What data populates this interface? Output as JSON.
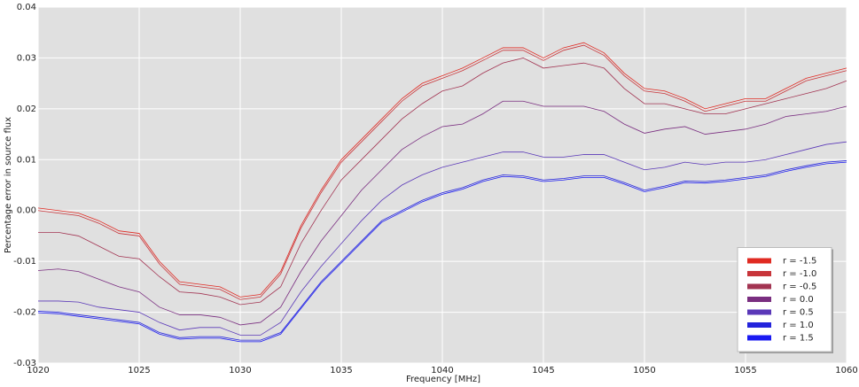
{
  "chart_data": {
    "type": "line",
    "xlabel": "Frequency [MHz]",
    "ylabel": "Percentage error in source flux",
    "x": [
      1020,
      1021,
      1022,
      1023,
      1024,
      1025,
      1026,
      1027,
      1028,
      1029,
      1030,
      1031,
      1032,
      1033,
      1034,
      1035,
      1036,
      1037,
      1038,
      1039,
      1040,
      1041,
      1042,
      1043,
      1044,
      1045,
      1046,
      1047,
      1048,
      1049,
      1050,
      1051,
      1052,
      1053,
      1054,
      1055,
      1056,
      1057,
      1058,
      1059,
      1060
    ],
    "series": [
      {
        "name": "r = -1.5",
        "color": "#e02a22",
        "values": [
          0.0005,
          0.0,
          -0.0005,
          -0.002,
          -0.004,
          -0.0045,
          -0.01,
          -0.014,
          -0.0145,
          -0.015,
          -0.017,
          -0.0165,
          -0.012,
          -0.003,
          0.004,
          0.01,
          0.014,
          0.018,
          0.022,
          0.025,
          0.0265,
          0.028,
          0.03,
          0.032,
          0.032,
          0.03,
          0.032,
          0.033,
          0.031,
          0.027,
          0.024,
          0.0235,
          0.022,
          0.02,
          0.021,
          0.022,
          0.022,
          0.024,
          0.026,
          0.027,
          0.028
        ]
      },
      {
        "name": "r = -1.0",
        "color": "#c8353a",
        "values": [
          0.0,
          -0.0005,
          -0.001,
          -0.0025,
          -0.0045,
          -0.005,
          -0.0105,
          -0.0145,
          -0.015,
          -0.0155,
          -0.0175,
          -0.017,
          -0.0125,
          -0.0035,
          0.0035,
          0.0095,
          0.0135,
          0.0175,
          0.0215,
          0.0245,
          0.026,
          0.0275,
          0.0295,
          0.0315,
          0.0315,
          0.0295,
          0.0315,
          0.0325,
          0.0305,
          0.0265,
          0.0235,
          0.023,
          0.0215,
          0.0195,
          0.0205,
          0.0215,
          0.0215,
          0.0235,
          0.0255,
          0.0265,
          0.0275
        ]
      },
      {
        "name": "r = -0.5",
        "color": "#a23452",
        "values": [
          -0.0043,
          -0.0043,
          -0.005,
          -0.007,
          -0.009,
          -0.0095,
          -0.013,
          -0.016,
          -0.0163,
          -0.017,
          -0.0185,
          -0.018,
          -0.015,
          -0.0065,
          0.0,
          0.006,
          0.01,
          0.014,
          0.018,
          0.021,
          0.0235,
          0.0245,
          0.027,
          0.029,
          0.03,
          0.028,
          0.0285,
          0.029,
          0.028,
          0.024,
          0.021,
          0.021,
          0.02,
          0.019,
          0.019,
          0.02,
          0.021,
          0.022,
          0.023,
          0.024,
          0.0255
        ]
      },
      {
        "name": "r = 0.0",
        "color": "#7a2e80",
        "values": [
          -0.0118,
          -0.0115,
          -0.012,
          -0.0135,
          -0.015,
          -0.016,
          -0.019,
          -0.0205,
          -0.0205,
          -0.021,
          -0.0225,
          -0.022,
          -0.019,
          -0.012,
          -0.006,
          -0.001,
          0.004,
          0.008,
          0.012,
          0.0145,
          0.0165,
          0.017,
          0.019,
          0.0215,
          0.0215,
          0.0205,
          0.0205,
          0.0205,
          0.0195,
          0.017,
          0.0152,
          0.016,
          0.0165,
          0.015,
          0.0155,
          0.016,
          0.017,
          0.0185,
          0.019,
          0.0195,
          0.0205
        ]
      },
      {
        "name": "r = 0.5",
        "color": "#5a38b8",
        "values": [
          -0.0178,
          -0.0178,
          -0.018,
          -0.019,
          -0.0195,
          -0.02,
          -0.022,
          -0.0235,
          -0.023,
          -0.023,
          -0.0245,
          -0.0245,
          -0.022,
          -0.016,
          -0.011,
          -0.0065,
          -0.002,
          0.002,
          0.005,
          0.007,
          0.0085,
          0.0095,
          0.0105,
          0.0115,
          0.0115,
          0.0105,
          0.0105,
          0.011,
          0.011,
          0.0095,
          0.008,
          0.0085,
          0.0095,
          0.009,
          0.0095,
          0.0095,
          0.01,
          0.011,
          0.012,
          0.013,
          0.0135
        ]
      },
      {
        "name": "r = 1.0",
        "color": "#2424dc",
        "values": [
          -0.0198,
          -0.02,
          -0.0205,
          -0.021,
          -0.0215,
          -0.022,
          -0.024,
          -0.025,
          -0.0248,
          -0.0248,
          -0.0255,
          -0.0255,
          -0.024,
          -0.019,
          -0.014,
          -0.01,
          -0.006,
          -0.002,
          0.0,
          0.002,
          0.0035,
          0.0045,
          0.006,
          0.007,
          0.0068,
          0.006,
          0.0063,
          0.0068,
          0.0068,
          0.0055,
          0.004,
          0.0048,
          0.0058,
          0.0057,
          0.006,
          0.0065,
          0.007,
          0.008,
          0.0088,
          0.0095,
          0.0098
        ]
      },
      {
        "name": "r = 1.5",
        "color": "#1a1af2",
        "values": [
          -0.0201,
          -0.0203,
          -0.0208,
          -0.0213,
          -0.0218,
          -0.0223,
          -0.0243,
          -0.0253,
          -0.0251,
          -0.0251,
          -0.0258,
          -0.0258,
          -0.0243,
          -0.0193,
          -0.0143,
          -0.0103,
          -0.0063,
          -0.0023,
          -0.0003,
          0.0017,
          0.0032,
          0.0042,
          0.0057,
          0.0067,
          0.0065,
          0.0057,
          0.006,
          0.0065,
          0.0065,
          0.0052,
          0.0037,
          0.0045,
          0.0055,
          0.0054,
          0.0057,
          0.0062,
          0.0067,
          0.0077,
          0.0085,
          0.0092,
          0.0095
        ]
      }
    ],
    "xlim": [
      1020,
      1060
    ],
    "xticks": [
      1020,
      1025,
      1030,
      1035,
      1040,
      1045,
      1050,
      1055,
      1060
    ],
    "ylim": [
      -0.03,
      0.04
    ],
    "yticks": [
      -0.03,
      -0.02,
      -0.01,
      {
        "value": 0,
        "label": "0.00"
      },
      0.01,
      0.02,
      0.03,
      0.04
    ],
    "grid": true,
    "legend": "lower right"
  }
}
